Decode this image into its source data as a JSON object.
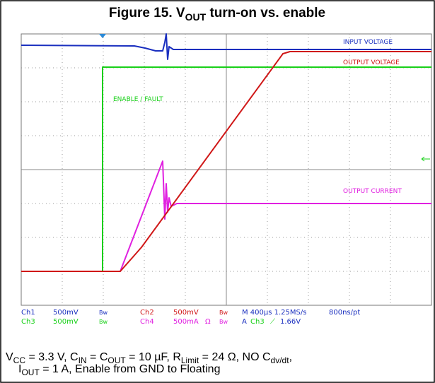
{
  "title": [
    "Figure 15. V",
    "OUT",
    " turn-on vs. enable"
  ],
  "traces": {
    "input": "INPUT VOLTAGE",
    "output": "OUTPUT VOLTAGE",
    "enable": "ENABLE / FAULT",
    "current": "OUTPUT CURRENT"
  },
  "status": {
    "row1": [
      "Ch1",
      "500mV",
      "Bw",
      "Ch2",
      "500mV",
      "Bw",
      "M 400µs 1.25MS/s",
      "800ns/pt"
    ],
    "row2": [
      "Ch3",
      "500mV",
      "Bw",
      "Ch4",
      "500mA",
      "Ω",
      "Bw",
      "A",
      "Ch3",
      "⟋",
      "1.66V"
    ]
  },
  "caption": [
    [
      "V",
      "CC",
      " = 3.3 V, C",
      "IN",
      " = C",
      "OUT",
      " = 10 µF, R",
      "Limit",
      " = 24 Ω, NO C",
      "dv/dt",
      ","
    ],
    [
      "I",
      "OUT",
      " = 1 A, Enable from GND to Floating"
    ]
  ]
}
